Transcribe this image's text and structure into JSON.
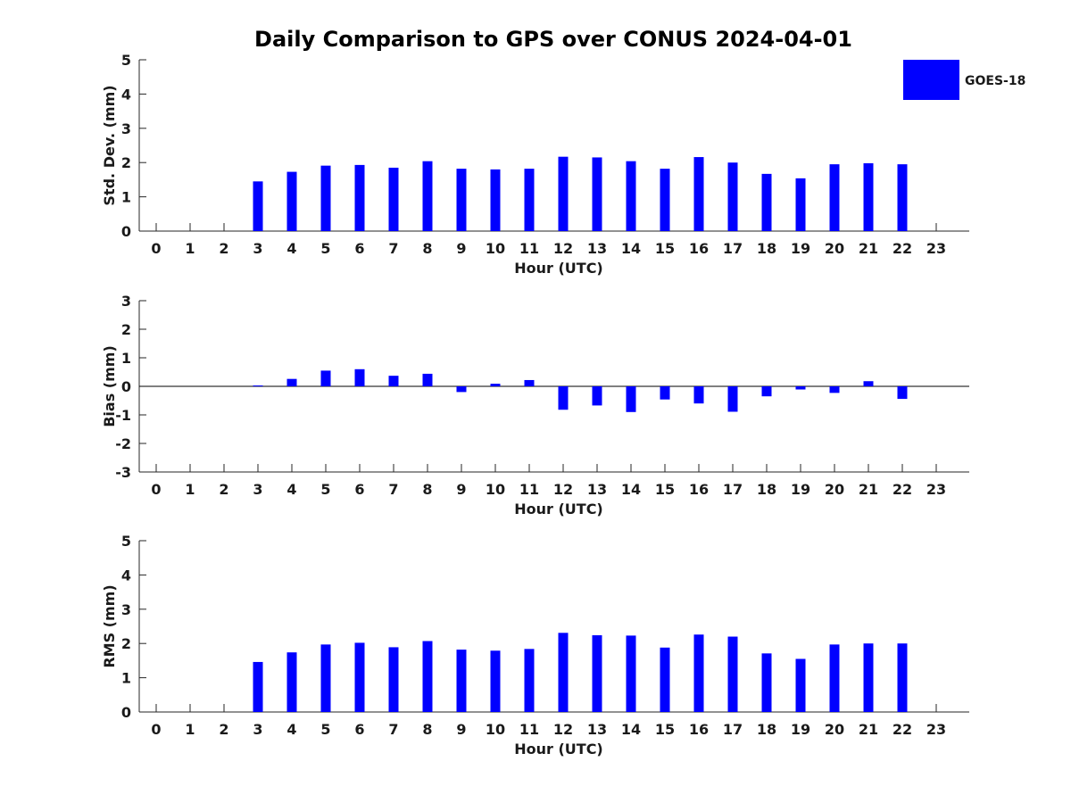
{
  "title": "Daily Comparison to GPS over CONUS 2024-04-01",
  "legend": {
    "label": "GOES-18",
    "color": "#0000ff",
    "position": "top-right"
  },
  "chart_data": [
    {
      "type": "bar",
      "name": "std",
      "ylabel": "Std. Dev. (mm)",
      "xlabel": "Hour (UTC)",
      "ylim": [
        0,
        5
      ],
      "yticks": [
        0,
        1,
        2,
        3,
        4,
        5
      ],
      "categories": [
        0,
        1,
        2,
        3,
        4,
        5,
        6,
        7,
        8,
        9,
        10,
        11,
        12,
        13,
        14,
        15,
        16,
        17,
        18,
        19,
        20,
        21,
        22,
        23
      ],
      "series": [
        {
          "name": "GOES-18",
          "values": [
            null,
            null,
            null,
            1.45,
            1.73,
            1.91,
            1.93,
            1.85,
            2.04,
            1.82,
            1.8,
            1.82,
            2.17,
            2.15,
            2.04,
            1.82,
            2.16,
            2.0,
            1.67,
            1.54,
            1.95,
            1.98,
            1.95,
            null
          ]
        }
      ]
    },
    {
      "type": "bar",
      "name": "bias",
      "ylabel": "Bias (mm)",
      "xlabel": "Hour (UTC)",
      "ylim": [
        -3,
        3
      ],
      "yticks": [
        -3,
        -2,
        -1,
        0,
        1,
        2,
        3
      ],
      "categories": [
        0,
        1,
        2,
        3,
        4,
        5,
        6,
        7,
        8,
        9,
        10,
        11,
        12,
        13,
        14,
        15,
        16,
        17,
        18,
        19,
        20,
        21,
        22,
        23
      ],
      "series": [
        {
          "name": "GOES-18",
          "values": [
            null,
            null,
            null,
            0.03,
            0.26,
            0.55,
            0.6,
            0.37,
            0.44,
            -0.2,
            0.09,
            0.22,
            -0.82,
            -0.67,
            -0.9,
            -0.46,
            -0.6,
            -0.89,
            -0.35,
            -0.11,
            -0.23,
            0.18,
            -0.44,
            null
          ]
        }
      ]
    },
    {
      "type": "bar",
      "name": "rms",
      "ylabel": "RMS (mm)",
      "xlabel": "Hour (UTC)",
      "ylim": [
        0,
        5
      ],
      "yticks": [
        0,
        1,
        2,
        3,
        4,
        5
      ],
      "categories": [
        0,
        1,
        2,
        3,
        4,
        5,
        6,
        7,
        8,
        9,
        10,
        11,
        12,
        13,
        14,
        15,
        16,
        17,
        18,
        19,
        20,
        21,
        22,
        23
      ],
      "series": [
        {
          "name": "GOES-18",
          "values": [
            null,
            null,
            null,
            1.46,
            1.74,
            1.97,
            2.02,
            1.89,
            2.07,
            1.82,
            1.79,
            1.84,
            2.31,
            2.24,
            2.23,
            1.88,
            2.26,
            2.2,
            1.71,
            1.55,
            1.97,
            2.0,
            2.0,
            null
          ]
        }
      ]
    }
  ]
}
